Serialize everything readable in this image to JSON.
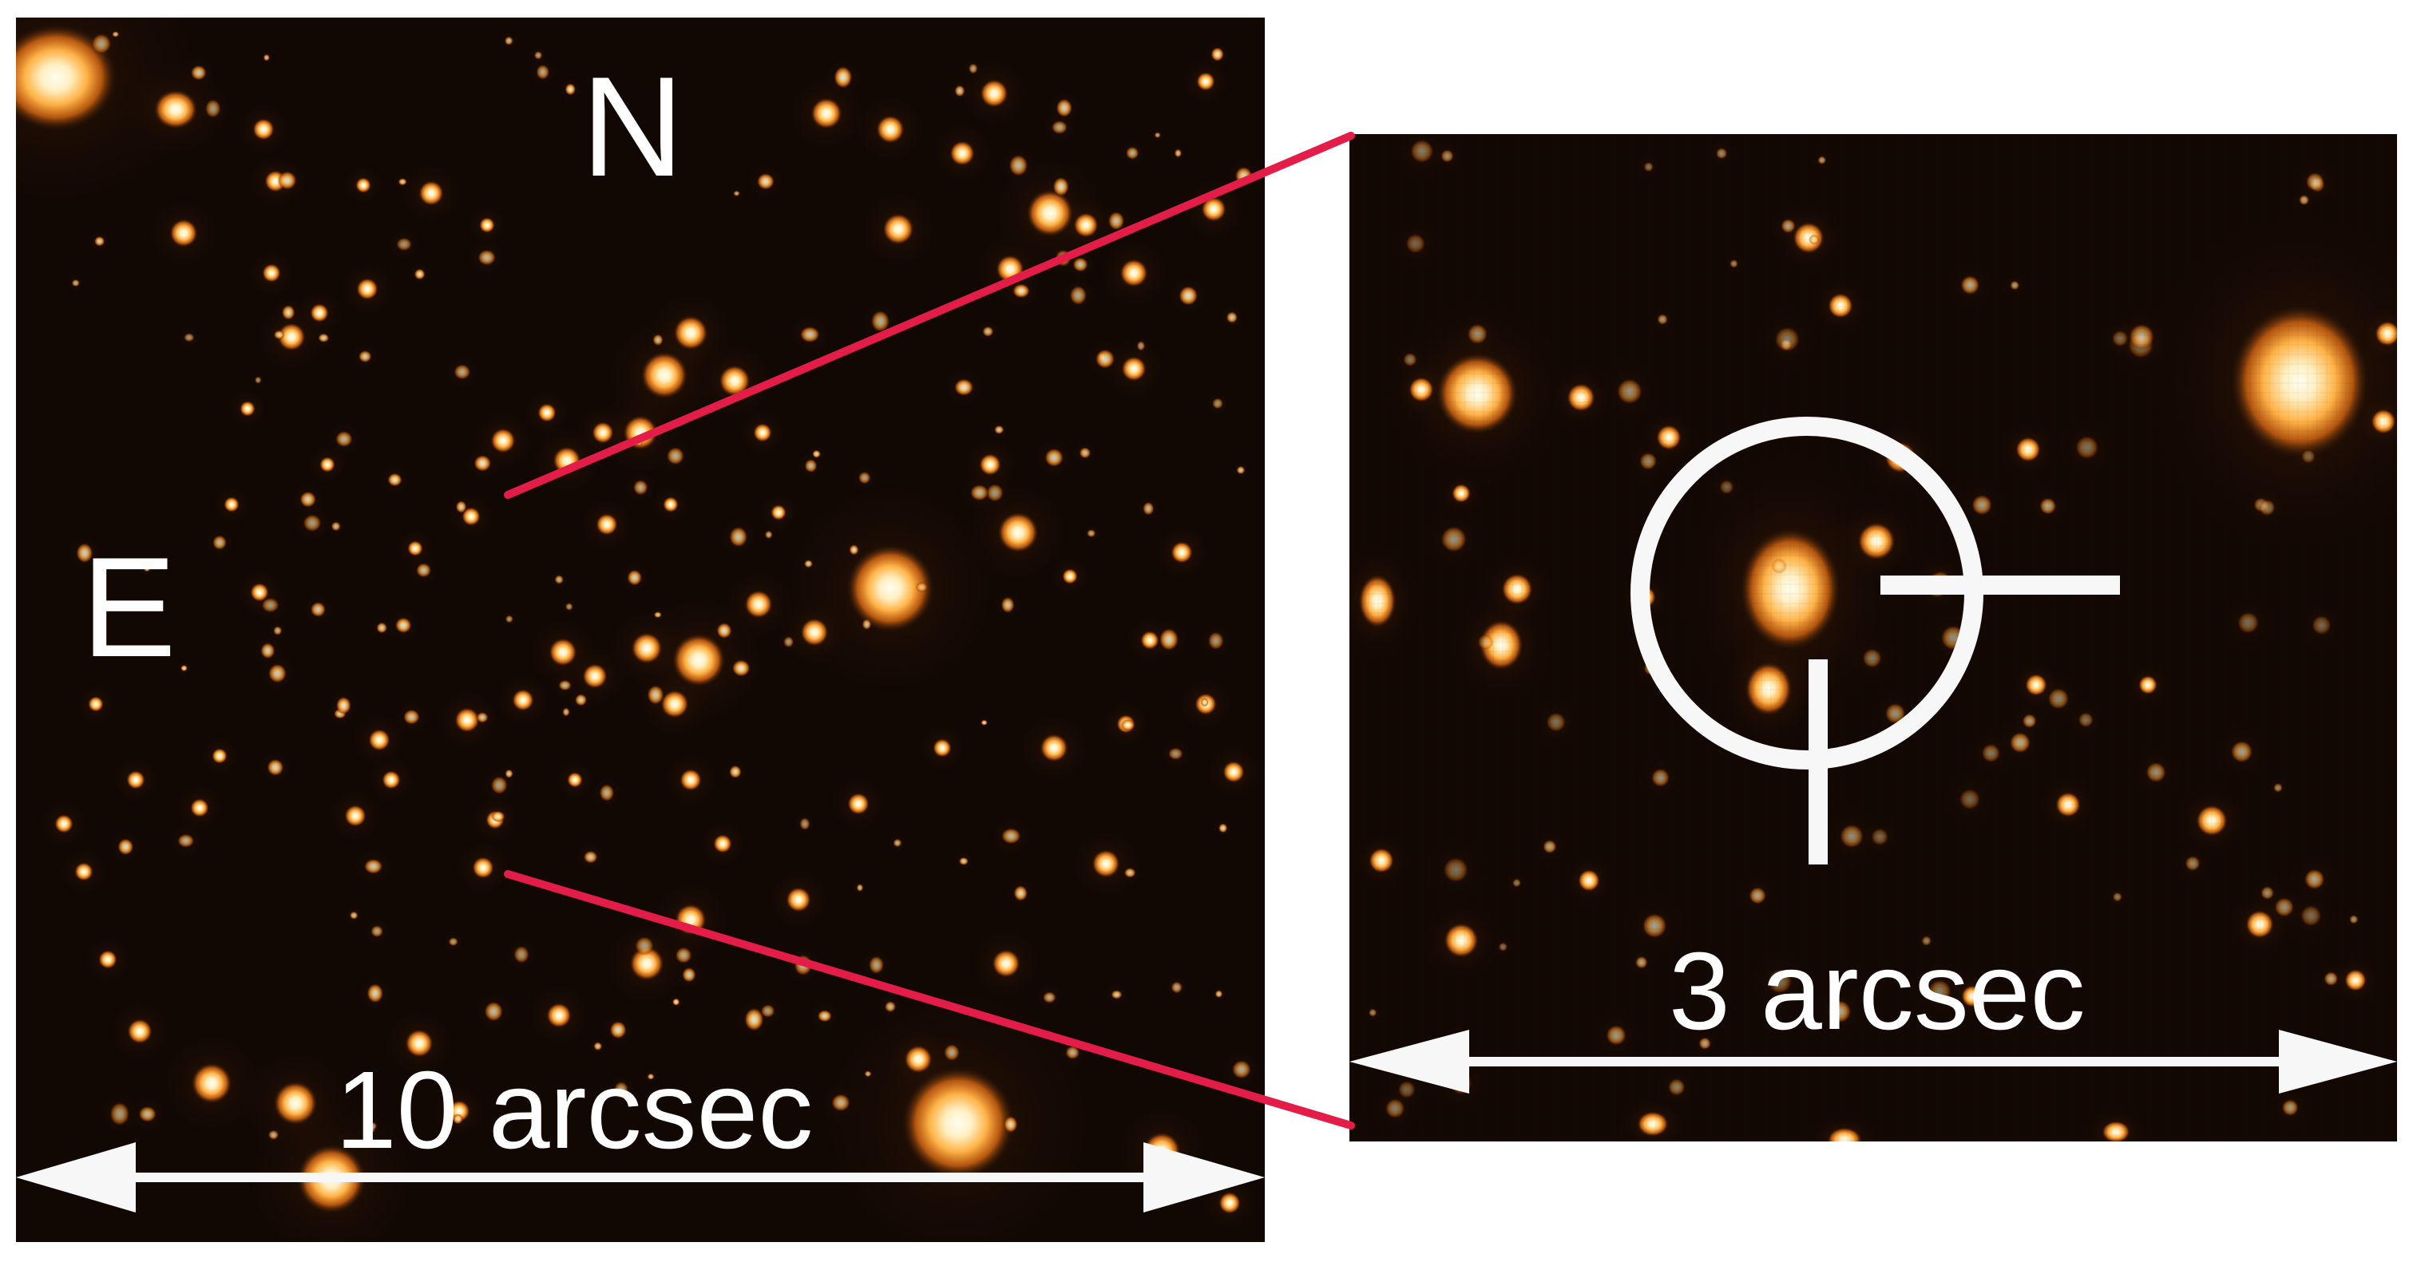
{
  "figure": {
    "left_panel": {
      "north_label": "N",
      "east_label": "E",
      "scale_label": "10 arcsec"
    },
    "right_panel": {
      "scale_label": "3 arcsec"
    }
  },
  "colors": {
    "background": "#120803",
    "star_glow": "#ff9a2a",
    "star_core": "#fff6d8",
    "connector": "#e31c48",
    "annotation": "#f7f7f7"
  },
  "icons": {
    "target_marker": "crosshair-icon",
    "scale_arrows": "double-arrow-icon"
  }
}
